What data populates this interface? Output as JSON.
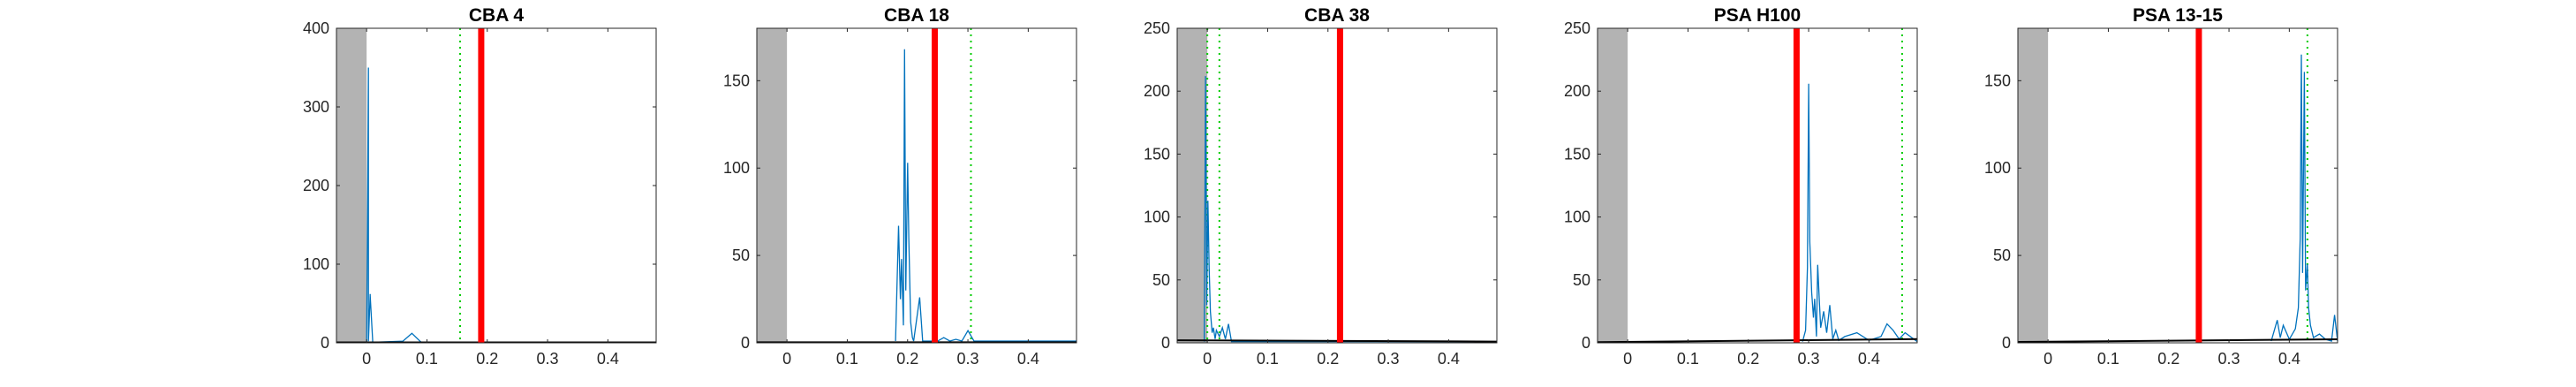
{
  "chart_data": [
    {
      "type": "line",
      "title": "CBA 4",
      "xlim": [
        -0.05,
        0.48
      ],
      "ylim": [
        0,
        400
      ],
      "xticks": [
        0,
        0.1,
        0.2,
        0.3,
        0.4
      ],
      "xtick_labels": [
        "0",
        "0.1",
        "0.2",
        "0.3",
        "0.4"
      ],
      "yticks": [
        0,
        100,
        200,
        300,
        400
      ],
      "ytick_labels": [
        "0",
        "100",
        "200",
        "300",
        "400"
      ],
      "shaded_region": [
        -0.05,
        0.0
      ],
      "red_line_x": 0.19,
      "green_dotted_x": [
        0.155
      ],
      "series": [
        {
          "x": [
            0,
            0.003,
            0.003,
            0.006,
            0.006,
            0.01,
            0.01,
            0.02,
            0.06,
            0.075,
            0.09,
            0.1,
            0.15,
            0.2,
            0.3,
            0.4,
            0.47
          ],
          "y": [
            0,
            350,
            2,
            62,
            60,
            3,
            1,
            1,
            2,
            12,
            1,
            1,
            1,
            1,
            1,
            1,
            1
          ]
        }
      ],
      "baseline": {
        "x": [
          -0.05,
          0.48
        ],
        "y": [
          0.5,
          0.5
        ]
      }
    },
    {
      "type": "line",
      "title": "CBA 18",
      "xlim": [
        -0.05,
        0.48
      ],
      "ylim": [
        0,
        180
      ],
      "xticks": [
        0,
        0.1,
        0.2,
        0.3,
        0.4
      ],
      "xtick_labels": [
        "0",
        "0.1",
        "0.2",
        "0.3",
        "0.4"
      ],
      "yticks": [
        0,
        50,
        100,
        150
      ],
      "ytick_labels": [
        "0",
        "50",
        "100",
        "150"
      ],
      "shaded_region": [
        -0.05,
        0.0
      ],
      "red_line_x": 0.245,
      "green_dotted_x": [
        0.305
      ],
      "series": [
        {
          "x": [
            0.18,
            0.185,
            0.188,
            0.19,
            0.193,
            0.195,
            0.197,
            0.2,
            0.202,
            0.205,
            0.208,
            0.21,
            0.22,
            0.225,
            0.23,
            0.25,
            0.26,
            0.27,
            0.28,
            0.29,
            0.3,
            0.31,
            0.4,
            0.48
          ],
          "y": [
            1,
            67,
            25,
            48,
            10,
            168,
            30,
            103,
            60,
            12,
            3,
            1,
            26,
            1,
            1,
            1,
            3,
            1,
            2,
            1,
            7,
            1,
            1,
            1
          ]
        }
      ],
      "baseline": {
        "x": [
          -0.05,
          0.48
        ],
        "y": [
          0.3,
          0.3
        ]
      }
    },
    {
      "type": "line",
      "title": "CBA 38",
      "xlim": [
        -0.05,
        0.48
      ],
      "ylim": [
        0,
        250
      ],
      "xticks": [
        0,
        0.1,
        0.2,
        0.3,
        0.4
      ],
      "xtick_labels": [
        "0",
        "0.1",
        "0.2",
        "0.3",
        "0.4"
      ],
      "yticks": [
        0,
        50,
        100,
        150,
        200,
        250
      ],
      "ytick_labels": [
        "0",
        "50",
        "100",
        "150",
        "200",
        "250"
      ],
      "shaded_region": [
        -0.05,
        0.0
      ],
      "red_line_x": 0.22,
      "green_dotted_x": [
        0.0,
        0.02
      ],
      "series": [
        {
          "x": [
            -0.005,
            -0.003,
            -0.001,
            0.001,
            0.003,
            0.005,
            0.008,
            0.01,
            0.013,
            0.015,
            0.02,
            0.025,
            0.03,
            0.035,
            0.04,
            0.1,
            0.2,
            0.3,
            0.48
          ],
          "y": [
            1,
            212,
            30,
            113,
            60,
            25,
            8,
            12,
            3,
            10,
            5,
            12,
            3,
            15,
            1,
            1,
            1,
            1,
            1
          ]
        }
      ],
      "baseline": {
        "x": [
          -0.05,
          0.48
        ],
        "y": [
          2,
          1
        ]
      }
    },
    {
      "type": "line",
      "title": "PSA H100",
      "xlim": [
        -0.05,
        0.48
      ],
      "ylim": [
        0,
        250
      ],
      "xticks": [
        0,
        0.1,
        0.2,
        0.3,
        0.4
      ],
      "xtick_labels": [
        "0",
        "0.1",
        "0.2",
        "0.3",
        "0.4"
      ],
      "yticks": [
        0,
        50,
        100,
        150,
        200,
        250
      ],
      "ytick_labels": [
        "0",
        "50",
        "100",
        "150",
        "200",
        "250"
      ],
      "shaded_region": [
        -0.05,
        0.0
      ],
      "red_line_x": 0.28,
      "green_dotted_x": [
        0.455
      ],
      "series": [
        {
          "x": [
            0.29,
            0.295,
            0.298,
            0.3,
            0.302,
            0.305,
            0.308,
            0.31,
            0.313,
            0.315,
            0.318,
            0.32,
            0.325,
            0.33,
            0.335,
            0.34,
            0.345,
            0.35,
            0.36,
            0.38,
            0.4,
            0.42,
            0.43,
            0.44,
            0.45,
            0.46,
            0.48
          ],
          "y": [
            1,
            10,
            60,
            206,
            80,
            40,
            20,
            35,
            5,
            62,
            30,
            12,
            25,
            8,
            30,
            3,
            10,
            2,
            5,
            8,
            2,
            5,
            15,
            10,
            3,
            8,
            1
          ]
        }
      ],
      "baseline": {
        "x": [
          -0.05,
          0.48
        ],
        "y": [
          0.5,
          3
        ]
      }
    },
    {
      "type": "line",
      "title": "PSA 13-15",
      "xlim": [
        -0.05,
        0.48
      ],
      "ylim": [
        0,
        180
      ],
      "xticks": [
        0,
        0.1,
        0.2,
        0.3,
        0.4
      ],
      "xtick_labels": [
        "0",
        "0.1",
        "0.2",
        "0.3",
        "0.4"
      ],
      "yticks": [
        0,
        50,
        100,
        150
      ],
      "ytick_labels": [
        "0",
        "50",
        "100",
        "150"
      ],
      "shaded_region": [
        -0.05,
        0.0
      ],
      "red_line_x": 0.25,
      "green_dotted_x": [
        0.43
      ],
      "series": [
        {
          "x": [
            0.37,
            0.38,
            0.385,
            0.39,
            0.4,
            0.41,
            0.415,
            0.418,
            0.42,
            0.422,
            0.425,
            0.427,
            0.43,
            0.432,
            0.435,
            0.44,
            0.45,
            0.46,
            0.47,
            0.475,
            0.48
          ],
          "y": [
            1,
            13,
            3,
            10,
            2,
            8,
            20,
            60,
            165,
            40,
            155,
            30,
            45,
            20,
            10,
            3,
            5,
            2,
            1,
            16,
            1
          ]
        }
      ],
      "baseline": {
        "x": [
          -0.05,
          0.48
        ],
        "y": [
          0.5,
          2
        ]
      }
    }
  ]
}
